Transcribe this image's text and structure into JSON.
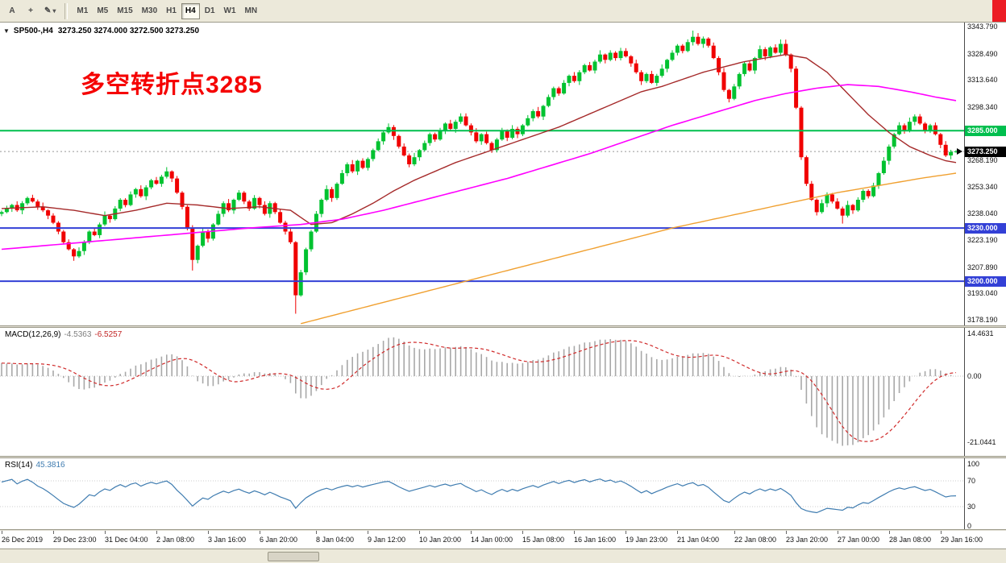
{
  "toolbar": {
    "cursor_label": "A",
    "crosshair_label": "+",
    "drawing_label": "✎",
    "dropdown_glyph": "▾",
    "timeframes": [
      "M1",
      "M5",
      "M15",
      "M30",
      "H1",
      "H4",
      "D1",
      "W1",
      "MN"
    ],
    "active_timeframe": "H4"
  },
  "chart": {
    "corner_triangle": "▼",
    "title_symbol": "SP500-,H4",
    "title_ohlc": "3273.250 3274.000 3272.500 3273.250",
    "annotation": {
      "text": "多空转折点3285",
      "color": "#f50000"
    },
    "price_axis_labels": [
      "3343.790",
      "3328.490",
      "3313.640",
      "3298.340",
      "3283.490",
      "3268.190",
      "3253.340",
      "3238.040",
      "3223.190",
      "3207.890",
      "3193.040",
      "3178.190"
    ],
    "levels": [
      {
        "value": 3285.0,
        "label": "3285.000",
        "color": "#00bf4e"
      },
      {
        "value": 3230.0,
        "label": "3230.000",
        "color": "#3340d6"
      },
      {
        "value": 3200.0,
        "label": "3200.000",
        "color": "#3340d6"
      }
    ],
    "current_price": {
      "value": 3273.25,
      "label": "3273.250"
    }
  },
  "chart_data": {
    "type": "candlestick",
    "symbol": "SP500-",
    "timeframe": "H4",
    "grid": "off",
    "y_range": [
      3178.19,
      3343.79
    ],
    "first_open": 3238,
    "closes": [
      3239,
      3241,
      3243,
      3240,
      3244,
      3247,
      3245,
      3242,
      3240,
      3237,
      3233,
      3228,
      3222,
      3218,
      3214,
      3217,
      3222,
      3228,
      3226,
      3232,
      3237,
      3235,
      3241,
      3246,
      3243,
      3249,
      3252,
      3248,
      3253,
      3257,
      3255,
      3259,
      3262,
      3258,
      3250,
      3242,
      3230,
      3212,
      3220,
      3228,
      3224,
      3232,
      3238,
      3244,
      3240,
      3246,
      3250,
      3245,
      3241,
      3247,
      3243,
      3238,
      3244,
      3239,
      3233,
      3228,
      3222,
      3192,
      3205,
      3218,
      3228,
      3238,
      3246,
      3252,
      3247,
      3255,
      3261,
      3266,
      3262,
      3268,
      3264,
      3269,
      3274,
      3279,
      3284,
      3287,
      3282,
      3276,
      3271,
      3266,
      3270,
      3274,
      3278,
      3283,
      3280,
      3285,
      3289,
      3286,
      3290,
      3293,
      3288,
      3284,
      3279,
      3283,
      3278,
      3274,
      3280,
      3285,
      3281,
      3286,
      3283,
      3288,
      3292,
      3296,
      3293,
      3299,
      3304,
      3309,
      3306,
      3312,
      3316,
      3313,
      3318,
      3322,
      3319,
      3324,
      3328,
      3325,
      3329,
      3326,
      3330,
      3327,
      3323,
      3318,
      3313,
      3317,
      3312,
      3316,
      3320,
      3325,
      3329,
      3333,
      3330,
      3335,
      3338,
      3334,
      3337,
      3333,
      3326,
      3318,
      3308,
      3303,
      3310,
      3317,
      3323,
      3319,
      3326,
      3331,
      3327,
      3332,
      3329,
      3334,
      3328,
      3320,
      3298,
      3270,
      3255,
      3246,
      3239,
      3244,
      3249,
      3245,
      3241,
      3237,
      3243,
      3240,
      3246,
      3251,
      3248,
      3254,
      3261,
      3268,
      3276,
      3283,
      3288,
      3285,
      3290,
      3293,
      3289,
      3285,
      3288,
      3283,
      3277,
      3271,
      3273,
      3273.3
    ],
    "wick_hi_pattern": [
      0.9,
      1.6,
      0.7,
      2.1,
      1.2,
      0.8,
      1.8,
      1.1,
      2.4,
      0.6,
      1.4,
      0.9
    ],
    "wick_lo_pattern": [
      1.3,
      0.7,
      1.9,
      0.9,
      2.2,
      1.1,
      0.6,
      1.7,
      1.0,
      2.0,
      0.8,
      1.5
    ],
    "wick_overrides": {
      "14": {
        "l": 3211.5
      },
      "37": {
        "l": 3206
      },
      "57": {
        "l": 3181.6
      },
      "89": {
        "h": 3294.8
      },
      "120": {
        "h": 3331.8
      },
      "134": {
        "h": 3341.5
      },
      "151": {
        "h": 3336.5
      },
      "163": {
        "l": 3232.5
      },
      "177": {
        "h": 3294.2
      },
      "185": {
        "h": 3274.0,
        "l": 3272.5
      }
    },
    "colors": {
      "bull": "#00c230",
      "bear": "#f00000"
    },
    "ma_lines": [
      {
        "name": "ma-fast-line",
        "color": "#a52a2a",
        "width": 1.4,
        "anchors": [
          [
            0,
            3241
          ],
          [
            8,
            3242
          ],
          [
            14,
            3240
          ],
          [
            20,
            3237
          ],
          [
            26,
            3240
          ],
          [
            32,
            3244
          ],
          [
            38,
            3243
          ],
          [
            44,
            3241
          ],
          [
            50,
            3242
          ],
          [
            56,
            3240
          ],
          [
            60,
            3232
          ],
          [
            64,
            3233
          ],
          [
            68,
            3238
          ],
          [
            72,
            3244
          ],
          [
            76,
            3251
          ],
          [
            80,
            3257
          ],
          [
            84,
            3262
          ],
          [
            88,
            3267
          ],
          [
            92,
            3271
          ],
          [
            96,
            3275
          ],
          [
            100,
            3279
          ],
          [
            104,
            3283
          ],
          [
            108,
            3287
          ],
          [
            112,
            3292
          ],
          [
            116,
            3297
          ],
          [
            120,
            3302
          ],
          [
            124,
            3307
          ],
          [
            128,
            3310
          ],
          [
            132,
            3314
          ],
          [
            136,
            3318
          ],
          [
            140,
            3321
          ],
          [
            144,
            3324
          ],
          [
            148,
            3326
          ],
          [
            152,
            3328
          ],
          [
            156,
            3326
          ],
          [
            160,
            3318
          ],
          [
            164,
            3306
          ],
          [
            168,
            3294
          ],
          [
            172,
            3284
          ],
          [
            176,
            3276
          ],
          [
            180,
            3271
          ],
          [
            183,
            3268
          ],
          [
            185,
            3267
          ]
        ]
      },
      {
        "name": "ma-mid-line",
        "color": "#ff00ff",
        "width": 1.6,
        "anchors": [
          [
            0,
            3218
          ],
          [
            12,
            3221
          ],
          [
            24,
            3224
          ],
          [
            36,
            3227
          ],
          [
            48,
            3230
          ],
          [
            58,
            3232
          ],
          [
            66,
            3235
          ],
          [
            74,
            3240
          ],
          [
            82,
            3246
          ],
          [
            90,
            3252
          ],
          [
            98,
            3258
          ],
          [
            106,
            3265
          ],
          [
            114,
            3272
          ],
          [
            122,
            3280
          ],
          [
            130,
            3288
          ],
          [
            138,
            3295
          ],
          [
            146,
            3302
          ],
          [
            152,
            3306
          ],
          [
            158,
            3309
          ],
          [
            164,
            3311
          ],
          [
            170,
            3310
          ],
          [
            176,
            3307
          ],
          [
            181,
            3304
          ],
          [
            185,
            3302
          ]
        ]
      },
      {
        "name": "ma-slow-line",
        "color": "#f0a030",
        "width": 1.4,
        "anchors": [
          [
            58,
            3176
          ],
          [
            66,
            3182
          ],
          [
            74,
            3188
          ],
          [
            82,
            3194
          ],
          [
            90,
            3200
          ],
          [
            98,
            3206
          ],
          [
            106,
            3212
          ],
          [
            114,
            3218
          ],
          [
            122,
            3224
          ],
          [
            130,
            3230
          ],
          [
            138,
            3235
          ],
          [
            146,
            3240
          ],
          [
            154,
            3245
          ],
          [
            162,
            3250
          ],
          [
            170,
            3254
          ],
          [
            178,
            3258
          ],
          [
            185,
            3261
          ]
        ]
      }
    ],
    "time_labels": [
      {
        "i": 0,
        "t": "26 Dec 2019"
      },
      {
        "i": 10,
        "t": "29 Dec 23:00"
      },
      {
        "i": 20,
        "t": "31 Dec 04:00"
      },
      {
        "i": 30,
        "t": "2 Jan 08:00"
      },
      {
        "i": 40,
        "t": "3 Jan 16:00"
      },
      {
        "i": 50,
        "t": "6 Jan 20:00"
      },
      {
        "i": 61,
        "t": "8 Jan 04:00"
      },
      {
        "i": 71,
        "t": "9 Jan 12:00"
      },
      {
        "i": 81,
        "t": "10 Jan 20:00"
      },
      {
        "i": 91,
        "t": "14 Jan 00:00"
      },
      {
        "i": 101,
        "t": "15 Jan 08:00"
      },
      {
        "i": 111,
        "t": "16 Jan 16:00"
      },
      {
        "i": 121,
        "t": "19 Jan 23:00"
      },
      {
        "i": 131,
        "t": "21 Jan 04:00"
      },
      {
        "i": 142,
        "t": "22 Jan 08:00"
      },
      {
        "i": 152,
        "t": "23 Jan 20:00"
      },
      {
        "i": 162,
        "t": "27 Jan 00:00"
      },
      {
        "i": 172,
        "t": "28 Jan 08:00"
      },
      {
        "i": 182,
        "t": "29 Jan 16:00"
      }
    ]
  },
  "macd": {
    "title": "MACD(12,26,9)",
    "main_value": "-4.5363",
    "signal_value": "-6.5257",
    "axis_labels": [
      "14.4631",
      "0.00",
      "-21.0441"
    ],
    "hist_color": "#a8a8a8",
    "signal_color": "#d02a2a"
  },
  "rsi": {
    "title": "RSI(14)",
    "value": "45.3816",
    "axis_labels": [
      "100",
      "70",
      "30",
      "0"
    ],
    "levels": [
      70,
      30
    ],
    "line_color": "#3f7cb0"
  }
}
